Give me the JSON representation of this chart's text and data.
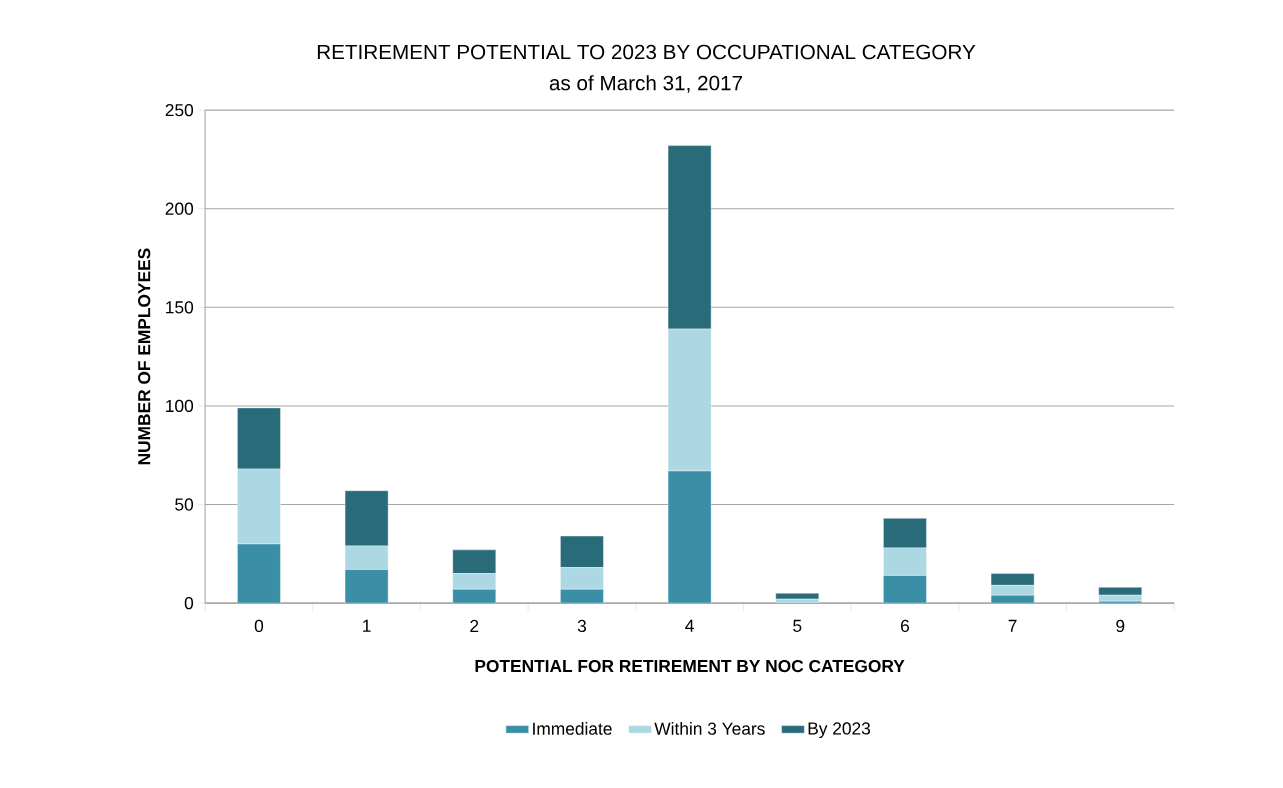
{
  "chart_data": {
    "type": "bar",
    "title": "RETIREMENT POTENTIAL TO 2023 BY OCCUPATIONAL CATEGORY",
    "subtitle": "as of March 31, 2017",
    "xlabel": "POTENTIAL FOR RETIREMENT BY NOC CATEGORY",
    "ylabel": "NUMBER OF EMPLOYEES",
    "categories": [
      "0",
      "1",
      "2",
      "3",
      "4",
      "5",
      "6",
      "7",
      "9"
    ],
    "series": [
      {
        "name": "Immediate",
        "color": "#3a8fa6",
        "values": [
          30,
          17,
          7,
          7,
          67,
          0,
          14,
          4,
          1
        ]
      },
      {
        "name": "Within 3 Years",
        "color": "#acd8e3",
        "values": [
          38,
          12,
          8,
          11,
          72,
          2,
          14,
          5,
          3
        ]
      },
      {
        "name": "By 2023",
        "color": "#2a6b7a",
        "values": [
          31,
          28,
          12,
          16,
          93,
          3,
          15,
          6,
          4
        ]
      }
    ],
    "stacked": true,
    "ylim": [
      0,
      250
    ],
    "yticks": [
      0,
      50,
      100,
      150,
      200,
      250
    ],
    "grid": "y",
    "legend": "bottom"
  }
}
